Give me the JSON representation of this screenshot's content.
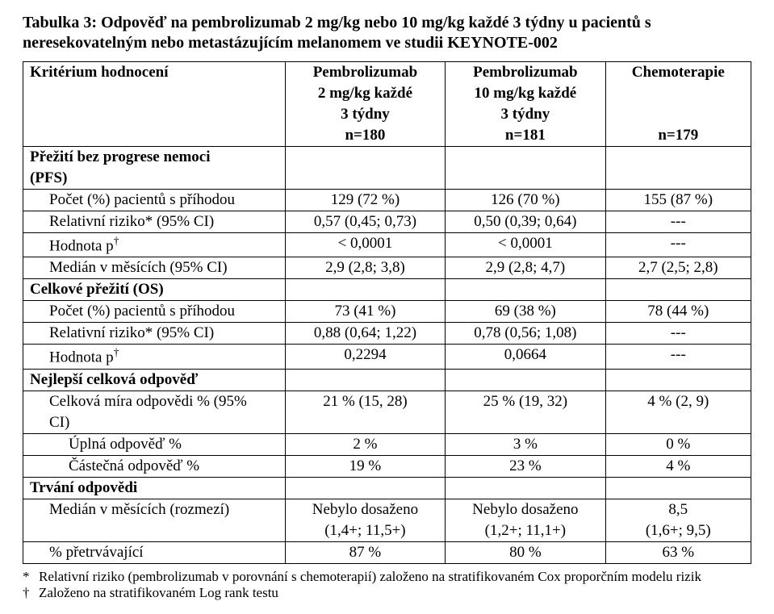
{
  "title": "Tabulka 3: Odpověď na pembrolizumab 2 mg/kg nebo 10 mg/kg každé 3 týdny u pacientů s neresekovatelným nebo metastázujícím melanomem ve studii KEYNOTE-002",
  "header": {
    "rowlabel": "Kritérium hodnocení",
    "col1_l1": "Pembrolizumab",
    "col1_l2": "2 mg/kg každé",
    "col1_l3": "3 týdny",
    "col1_l4": "n=180",
    "col2_l1": "Pembrolizumab",
    "col2_l2": "10 mg/kg každé",
    "col2_l3": "3 týdny",
    "col2_l4": "n=181",
    "col3_l1": "Chemoterapie",
    "col3_l4": "n=179"
  },
  "sections": {
    "pfs_label_l1": "Přežití bez progrese nemoci",
    "pfs_label_l2": "(PFS)",
    "os_label": "Celkové přežití (OS)",
    "bor_label": "Nejlepší celková odpověď",
    "dur_label": "Trvání odpovědi"
  },
  "rows": {
    "pfs_count": {
      "label": "Počet (%) pacientů s příhodou",
      "c1": "129 (72 %)",
      "c2": "126 (70 %)",
      "c3": "155 (87 %)"
    },
    "pfs_hr": {
      "label": "Relativní riziko* (95% CI)",
      "c1": "0,57 (0,45; 0,73)",
      "c2": "0,50 (0,39; 0,64)",
      "c3": "---"
    },
    "pfs_p": {
      "label_pre": "Hodnota p",
      "c1": "< 0,0001",
      "c2": "< 0,0001",
      "c3": "---"
    },
    "pfs_med": {
      "label": "Medián v měsících (95% CI)",
      "c1": "2,9 (2,8; 3,8)",
      "c2": "2,9 (2,8; 4,7)",
      "c3": "2,7 (2,5; 2,8)"
    },
    "os_count": {
      "label": "Počet (%) pacientů s příhodou",
      "c1": "73 (41 %)",
      "c2": "69 (38 %)",
      "c3": "78 (44 %)"
    },
    "os_hr": {
      "label": "Relativní riziko* (95% CI)",
      "c1": "0,88 (0,64; 1,22)",
      "c2": "0,78 (0,56; 1,08)",
      "c3": "---"
    },
    "os_p": {
      "label_pre": "Hodnota p",
      "c1": "0,2294",
      "c2": "0,0664",
      "c3": "---"
    },
    "orr": {
      "label_l1": "Celková míra odpovědi % (95%",
      "label_l2": "CI)",
      "c1": "21 % (15, 28)",
      "c2": "25 % (19, 32)",
      "c3": "4 % (2, 9)"
    },
    "cr": {
      "label": "Úplná odpověď %",
      "c1": "2 %",
      "c2": "3 %",
      "c3": "0 %"
    },
    "pr": {
      "label": "Částečná odpověď %",
      "c1": "19 %",
      "c2": "23 %",
      "c3": "4 %"
    },
    "dur_med": {
      "label": "Medián v měsících (rozmezí)",
      "c1_l1": "Nebylo dosaženo",
      "c1_l2": "(1,4+; 11,5+)",
      "c2_l1": "Nebylo dosaženo",
      "c2_l2": "(1,2+; 11,1+)",
      "c3_l1": "8,5",
      "c3_l2": "(1,6+; 9,5)"
    },
    "persist": {
      "label": "% přetrvávající",
      "c1": "87 %",
      "c2": "80 %",
      "c3": "63 %"
    }
  },
  "footnotes": {
    "star": "Relativní riziko (pembrolizumab v porovnání s chemoterapií) založeno na stratifikovaném Cox proporčním modelu rizik",
    "dagger": "Založeno na stratifikovaném Log rank testu",
    "star_sym": "*",
    "dagger_sym": "†"
  }
}
